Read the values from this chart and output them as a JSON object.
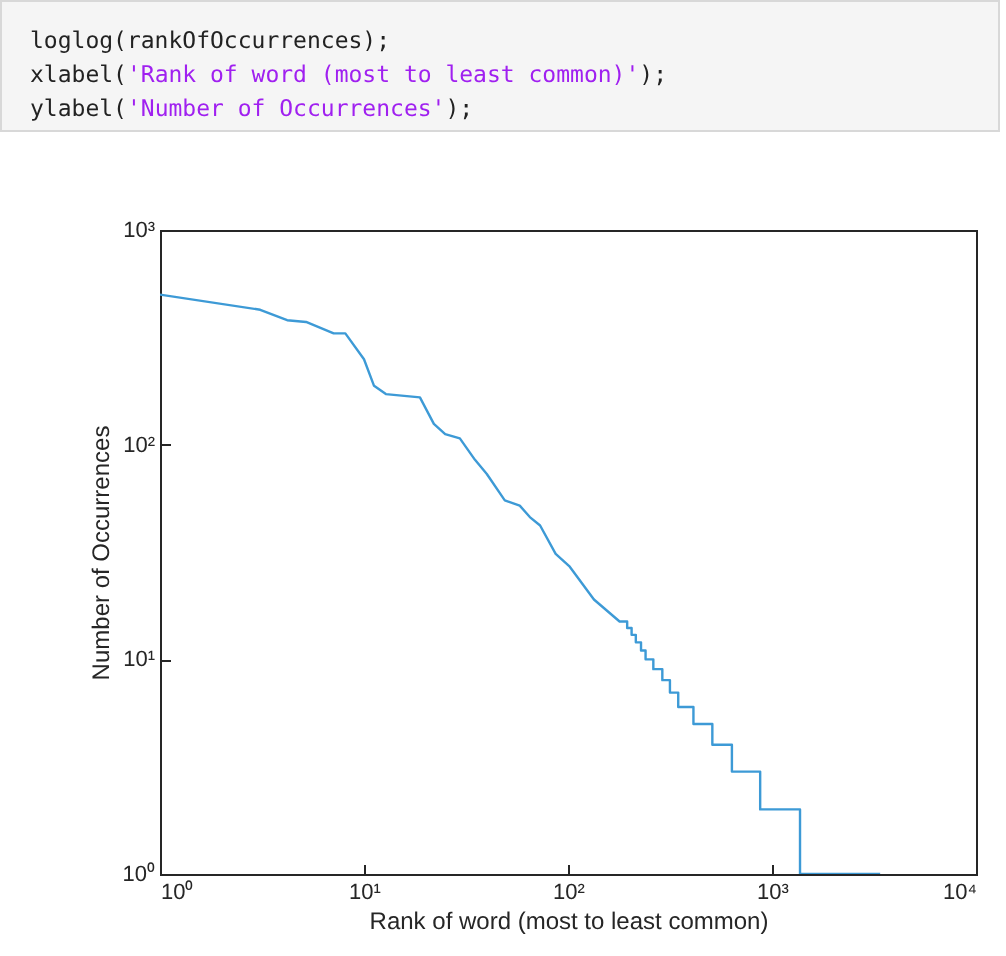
{
  "chart_data": {
    "type": "line",
    "xlabel": "Rank of word (most to least common)",
    "ylabel": "Number of Occurrences",
    "annotations": [
      "loglog(rankOfOccurrences);",
      "xlabel('Rank of word (most to least common)');",
      "ylabel('Number of Occurrences');"
    ],
    "log": "xy",
    "grid": false,
    "marker": "none",
    "line_style": "solid",
    "xlim": [
      1,
      10000
    ],
    "ylim": [
      1,
      1000
    ],
    "xticks": [
      {
        "value": 1,
        "label": "10⁰"
      },
      {
        "value": 10,
        "label": "10¹"
      },
      {
        "value": 100,
        "label": "10²"
      },
      {
        "value": 1000,
        "label": "10³"
      },
      {
        "value": 10000,
        "label": "10⁴"
      }
    ],
    "yticks": [
      {
        "value": 1,
        "label": "10⁰"
      },
      {
        "value": 10,
        "label": "10¹"
      },
      {
        "value": 100,
        "label": "10²"
      },
      {
        "value": 1000,
        "label": "10³"
      }
    ],
    "series": [
      {
        "color": "#3d9ad6",
        "x": [
          1,
          3.1,
          4.2,
          5.2,
          7.1,
          8.1,
          10,
          11.2,
          12.8,
          18.8,
          22,
          25,
          29.5,
          35,
          40,
          49,
          58,
          65,
          73,
          87,
          102,
          134,
          179,
          195,
          195,
          205,
          205,
          215,
          215,
          228,
          228,
          240,
          240,
          262,
          262,
          290,
          290,
          316,
          316,
          347,
          347,
          412,
          412,
          510,
          510,
          636,
          636,
          875,
          875,
          1372,
          1372,
          3390
        ],
        "values": [
          500,
          425,
          380,
          373,
          330,
          330,
          250,
          188,
          172,
          166,
          125,
          112,
          107,
          85,
          73,
          55,
          52,
          46,
          42,
          31,
          27,
          19,
          15,
          15,
          14,
          14,
          13,
          13,
          12,
          12,
          11,
          11,
          10,
          10,
          9,
          9,
          8,
          8,
          7,
          7,
          6,
          6,
          5,
          5,
          4,
          4,
          3,
          3,
          2,
          2,
          1,
          1
        ]
      }
    ]
  }
}
